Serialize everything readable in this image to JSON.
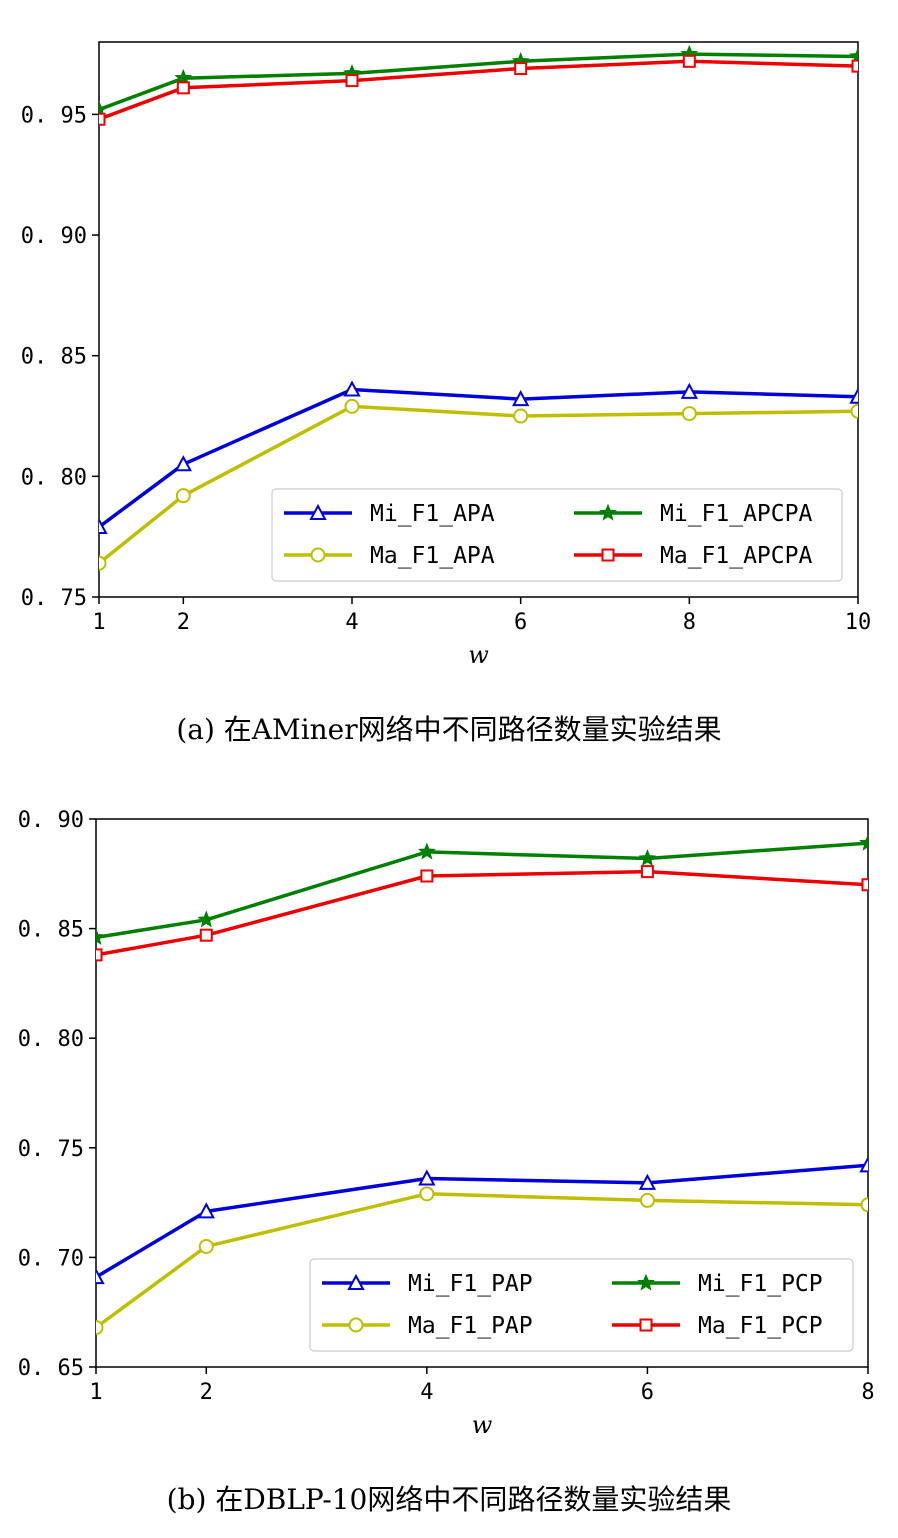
{
  "chart_data": [
    {
      "type": "line",
      "caption": "(a) 在AMiner网络中不同路径数量实验结果",
      "xlabel": "w",
      "ylabel": "",
      "categories": [
        "1",
        "2",
        "4",
        "6",
        "8",
        "10"
      ],
      "y_ticks": [
        "0.75",
        "0.80",
        "0.85",
        "0.90",
        "0.95"
      ],
      "ylim": [
        0.75,
        0.98
      ],
      "grid": false,
      "legend_position": "lower-right",
      "series": [
        {
          "name": "Mi_F1_APA",
          "color": "#0000dd",
          "marker": "triangle",
          "values": [
            0.779,
            0.805,
            0.836,
            0.832,
            0.835,
            0.833
          ]
        },
        {
          "name": "Ma_F1_APA",
          "color": "#bfbf00",
          "marker": "circle",
          "values": [
            0.764,
            0.792,
            0.829,
            0.825,
            0.826,
            0.827
          ]
        },
        {
          "name": "Mi_F1_APCPA",
          "color": "#008000",
          "marker": "star",
          "values": [
            0.952,
            0.965,
            0.967,
            0.972,
            0.975,
            0.974
          ]
        },
        {
          "name": "Ma_F1_APCPA",
          "color": "#ee0000",
          "marker": "square",
          "values": [
            0.948,
            0.961,
            0.964,
            0.969,
            0.972,
            0.97
          ]
        }
      ]
    },
    {
      "type": "line",
      "caption": "(b) 在DBLP-10网络中不同路径数量实验结果",
      "xlabel": "w",
      "ylabel": "",
      "categories": [
        "1",
        "2",
        "4",
        "6",
        "8"
      ],
      "y_ticks": [
        "0.65",
        "0.70",
        "0.75",
        "0.80",
        "0.85",
        "0.90"
      ],
      "ylim": [
        0.65,
        0.9
      ],
      "grid": false,
      "legend_position": "lower-right",
      "series": [
        {
          "name": "Mi_F1_PAP",
          "color": "#0000dd",
          "marker": "triangle",
          "values": [
            0.691,
            0.721,
            0.736,
            0.734,
            0.742
          ]
        },
        {
          "name": "Ma_F1_PAP",
          "color": "#bfbf00",
          "marker": "circle",
          "values": [
            0.668,
            0.705,
            0.729,
            0.726,
            0.724
          ]
        },
        {
          "name": "Mi_F1_PCP",
          "color": "#008000",
          "marker": "star",
          "values": [
            0.846,
            0.854,
            0.885,
            0.882,
            0.889
          ]
        },
        {
          "name": "Ma_F1_PCP",
          "color": "#ee0000",
          "marker": "square",
          "values": [
            0.838,
            0.847,
            0.874,
            0.876,
            0.87
          ]
        }
      ]
    }
  ]
}
